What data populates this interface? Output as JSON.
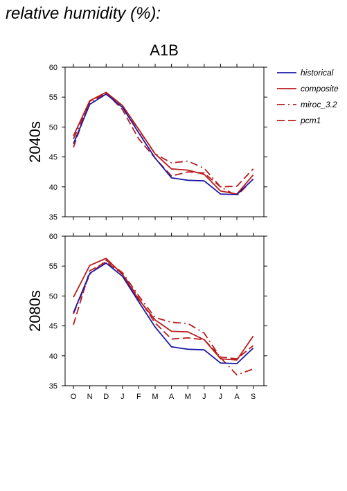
{
  "page_title": "relative humidity (%):",
  "chart_data": {
    "type": "line",
    "scenario": "A1B",
    "categories": [
      "O",
      "N",
      "D",
      "J",
      "F",
      "M",
      "A",
      "M",
      "J",
      "J",
      "A",
      "S"
    ],
    "ylim": [
      35,
      60
    ],
    "yticks": [
      35,
      40,
      45,
      50,
      55,
      60
    ],
    "legend": [
      {
        "name": "historical",
        "color": "#1a1aa6",
        "dash": "solid"
      },
      {
        "name": "composite",
        "color": "#b81c1c",
        "dash": "solid"
      },
      {
        "name": "miroc_3.2",
        "color": "#b81c1c",
        "dash": "dashdot"
      },
      {
        "name": "pcm1",
        "color": "#b81c1c",
        "dash": "dashed"
      }
    ],
    "panels": [
      {
        "label": "2040s",
        "series": [
          {
            "name": "historical",
            "values": [
              47.2,
              53.8,
              55.5,
              53.3,
              49.0,
              44.8,
              41.5,
              41.1,
              41.0,
              38.8,
              38.7,
              41.3
            ]
          },
          {
            "name": "composite",
            "values": [
              48.5,
              54.4,
              55.8,
              53.6,
              49.6,
              45.5,
              43.0,
              42.8,
              42.1,
              39.3,
              38.8,
              42.0
            ]
          },
          {
            "name": "miroc_3.2",
            "values": [
              48.0,
              54.0,
              55.6,
              53.5,
              49.5,
              45.5,
              44.0,
              44.3,
              43.1,
              40.0,
              38.5,
              41.3
            ]
          },
          {
            "name": "pcm1",
            "values": [
              46.6,
              54.3,
              55.7,
              52.9,
              48.0,
              44.8,
              41.8,
              42.5,
              42.3,
              40.0,
              40.1,
              43.0
            ]
          }
        ]
      },
      {
        "label": "2080s",
        "series": [
          {
            "name": "historical",
            "values": [
              47.2,
              53.8,
              55.5,
              53.3,
              49.0,
              44.8,
              41.5,
              41.1,
              41.0,
              38.8,
              38.7,
              41.3
            ]
          },
          {
            "name": "composite",
            "values": [
              49.8,
              55.1,
              56.3,
              53.6,
              49.4,
              46.0,
              44.1,
              44.0,
              42.7,
              39.5,
              39.3,
              43.3
            ]
          },
          {
            "name": "miroc_3.2",
            "values": [
              47.0,
              53.6,
              56.0,
              53.9,
              50.0,
              46.4,
              45.6,
              45.4,
              43.8,
              39.7,
              36.8,
              37.8
            ]
          },
          {
            "name": "pcm1",
            "values": [
              45.2,
              54.2,
              55.7,
              53.7,
              49.6,
              45.5,
              42.8,
              43.0,
              42.7,
              39.8,
              39.5,
              41.7
            ]
          }
        ]
      }
    ]
  }
}
